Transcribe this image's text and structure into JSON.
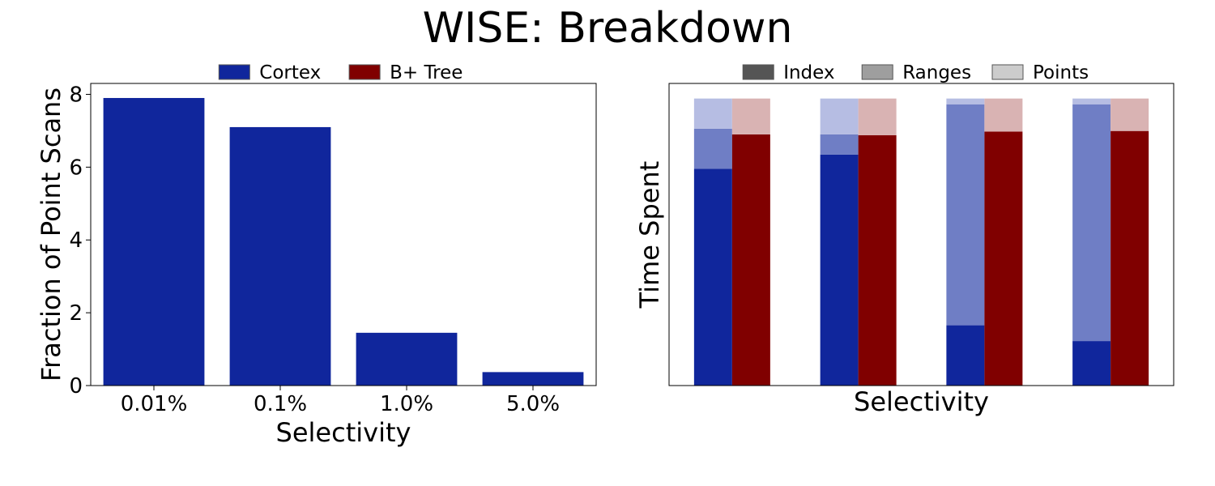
{
  "title": "WISE: Breakdown",
  "legends": {
    "left": [
      {
        "label": "Cortex",
        "color": "#10269c"
      },
      {
        "label": "B+ Tree",
        "color": "#800000"
      }
    ],
    "right": [
      {
        "label": "Index",
        "color": "#555555"
      },
      {
        "label": "Ranges",
        "color": "#9e9e9e"
      },
      {
        "label": "Points",
        "color": "#cccccc"
      }
    ]
  },
  "colors": {
    "cortex": "#10269c",
    "btree": "#800000",
    "index_shade": "#10269c",
    "ranges_shade": "#6f7ec5",
    "points_shade_cortex": "#b6bde3",
    "points_shade_btree": "#d9b3b3"
  },
  "chart_data": [
    {
      "type": "bar",
      "title": "",
      "xlabel": "Selectivity",
      "ylabel": "Fraction of Point Scans",
      "categories": [
        "0.01%",
        "0.1%",
        "1.0%",
        "5.0%"
      ],
      "values": [
        7.9,
        7.1,
        1.45,
        0.37
      ],
      "ylim": [
        0,
        8.3
      ],
      "yticks": [
        0,
        2,
        4,
        6,
        8
      ],
      "legend": "top-center (above plot)",
      "grid": false
    },
    {
      "type": "bar",
      "stacked": true,
      "title": "",
      "xlabel": "Selectivity",
      "ylabel": "Time Spent",
      "ylim": [
        0,
        1
      ],
      "groups": [
        {
          "cortex": {
            "Index": 0.755,
            "Ranges": 0.14,
            "Points": 0.105
          },
          "btree": {
            "Index": 0.875,
            "Points": 0.125
          }
        },
        {
          "cortex": {
            "Index": 0.805,
            "Ranges": 0.07,
            "Points": 0.125
          },
          "btree": {
            "Index": 0.872,
            "Points": 0.128
          }
        },
        {
          "cortex": {
            "Index": 0.21,
            "Ranges": 0.77,
            "Points": 0.02
          },
          "btree": {
            "Index": 0.885,
            "Points": 0.115
          }
        },
        {
          "cortex": {
            "Index": 0.155,
            "Ranges": 0.825,
            "Points": 0.02
          },
          "btree": {
            "Index": 0.887,
            "Points": 0.113
          }
        }
      ],
      "legend": "top-center (above plot)",
      "grid": false
    }
  ]
}
